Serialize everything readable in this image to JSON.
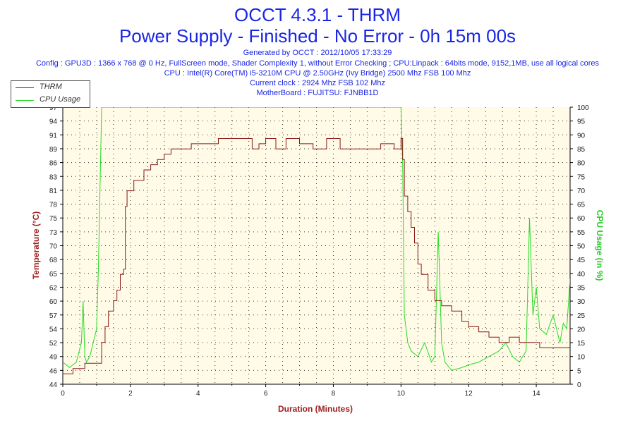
{
  "header": {
    "title": "OCCT 4.3.1 - THRM",
    "subtitle": "Power Supply - Finished - No Error - 0h 15m 00s",
    "generated": "Generated by OCCT : 2012/10/05 17:33:29",
    "config": "Config : GPU3D : 1366 x 768 @ 0 Hz, FullScreen mode, Shader Complexity 1, without Error Checking ; CPU:Linpack : 64bits mode, 9152,1MB, use all logical cores",
    "cpu": "CPU : Intel(R) Core(TM) i5-3210M CPU @ 2.50GHz (Ivy Bridge) 2500 Mhz FSB 100 Mhz",
    "clock": "Current clock : 2924 Mhz FSB 102 Mhz",
    "motherboard": "MotherBoard : FUJITSU: FJNBB1D"
  },
  "chart_data": {
    "type": "line",
    "xlabel": "Duration (Minutes)",
    "ylabel_left": "Temperature (°C)",
    "ylabel_right": "CPU Usage (in %)",
    "xlim": [
      0,
      15
    ],
    "ylim_left": [
      44,
      97
    ],
    "ylim_right": [
      0,
      100
    ],
    "x_ticks": [
      0,
      2,
      4,
      6,
      8,
      10,
      12,
      14
    ],
    "y_left_ticks": [
      44,
      46,
      49,
      52,
      54,
      57,
      60,
      62,
      65,
      68,
      70,
      73,
      75,
      78,
      81,
      83,
      86,
      89,
      91,
      94,
      97
    ],
    "y_right_ticks": [
      0,
      5,
      10,
      15,
      20,
      25,
      30,
      35,
      40,
      45,
      50,
      55,
      60,
      65,
      70,
      75,
      80,
      85,
      90,
      95,
      100
    ],
    "grid": true,
    "legend": "top-left",
    "colors": {
      "thrm": "#8b1a1a",
      "cpu": "#22dd22",
      "axis_left": "#a02020",
      "axis_right": "#22cc22",
      "plot_bg": "#fffbe6"
    },
    "series": [
      {
        "name": "THRM",
        "axis": "left",
        "x": [
          0,
          0.3,
          0.5,
          0.65,
          1.1,
          1.15,
          1.25,
          1.35,
          1.5,
          1.6,
          1.7,
          1.8,
          1.85,
          1.9,
          2.1,
          2.4,
          2.6,
          2.8,
          3.0,
          3.2,
          3.5,
          3.8,
          4.2,
          4.6,
          5.0,
          5.4,
          5.6,
          5.8,
          6.0,
          6.3,
          6.6,
          7.0,
          7.4,
          7.8,
          8.2,
          8.6,
          9.0,
          9.4,
          9.8,
          10.0,
          10.05,
          10.1,
          10.2,
          10.3,
          10.4,
          10.5,
          10.6,
          10.8,
          11.0,
          11.2,
          11.5,
          11.8,
          12.0,
          12.3,
          12.6,
          12.9,
          13.2,
          13.5,
          13.8,
          14.1,
          14.4,
          14.7,
          15.0
        ],
        "y": [
          46,
          47,
          47,
          48,
          48,
          52,
          55,
          58,
          60,
          62,
          65,
          66,
          78,
          81,
          83,
          85,
          86,
          87,
          88,
          89,
          89,
          90,
          90,
          91,
          91,
          91,
          89,
          90,
          91,
          89,
          91,
          90,
          89,
          91,
          89,
          89,
          89,
          90,
          89,
          91,
          87,
          80,
          77,
          74,
          71,
          67,
          65,
          62,
          60,
          59,
          58,
          56,
          55,
          54,
          53,
          52,
          53,
          52,
          52,
          51,
          51,
          51,
          51
        ]
      },
      {
        "name": "CPU Usage",
        "axis": "right",
        "x": [
          0,
          0.2,
          0.4,
          0.55,
          0.6,
          0.65,
          0.7,
          0.8,
          0.9,
          1.0,
          1.05,
          1.1,
          1.15,
          1.2,
          2.0,
          4.0,
          6.0,
          8.0,
          9.9,
          10.0,
          10.05,
          10.1,
          10.2,
          10.3,
          10.5,
          10.7,
          10.9,
          11.0,
          11.1,
          11.2,
          11.3,
          11.5,
          11.8,
          12.0,
          12.3,
          12.6,
          12.9,
          13.1,
          13.3,
          13.5,
          13.7,
          13.8,
          13.9,
          14.0,
          14.1,
          14.3,
          14.5,
          14.7,
          14.8,
          14.9,
          15.0
        ],
        "y": [
          8,
          6,
          8,
          15,
          30,
          10,
          8,
          10,
          15,
          20,
          40,
          70,
          100,
          100,
          100,
          100,
          100,
          100,
          100,
          100,
          80,
          25,
          15,
          12,
          10,
          15,
          8,
          10,
          55,
          15,
          8,
          5,
          6,
          7,
          8,
          10,
          12,
          15,
          10,
          8,
          12,
          60,
          25,
          35,
          20,
          18,
          25,
          15,
          22,
          20,
          38
        ]
      }
    ]
  }
}
